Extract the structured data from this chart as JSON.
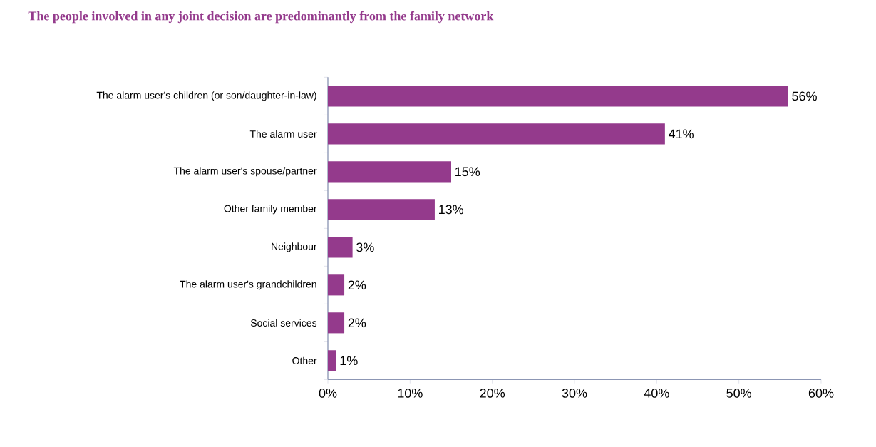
{
  "chart_data": {
    "type": "bar",
    "orientation": "horizontal",
    "title": "The people involved in any joint decision are predominantly from the family network",
    "categories": [
      "The alarm user's children (or son/daughter-in-law)",
      "The alarm user",
      "The alarm user's spouse/partner",
      "Other family member",
      "Neighbour",
      "The alarm user's grandchildren",
      "Social services",
      "Other"
    ],
    "values": [
      56,
      41,
      15,
      13,
      3,
      2,
      2,
      1
    ],
    "value_labels": [
      "56%",
      "41%",
      "15%",
      "13%",
      "3%",
      "2%",
      "2%",
      "1%"
    ],
    "color": "#943a8c",
    "xlim": [
      0,
      60
    ],
    "xticks": [
      {
        "value": 0,
        "label": "0%"
      },
      {
        "value": 10,
        "label": "10%"
      },
      {
        "value": 20,
        "label": "20%"
      },
      {
        "value": 30,
        "label": "30%"
      },
      {
        "value": 40,
        "label": "40%"
      },
      {
        "value": 50,
        "label": "50%"
      },
      {
        "value": 60,
        "label": "60%"
      }
    ]
  }
}
